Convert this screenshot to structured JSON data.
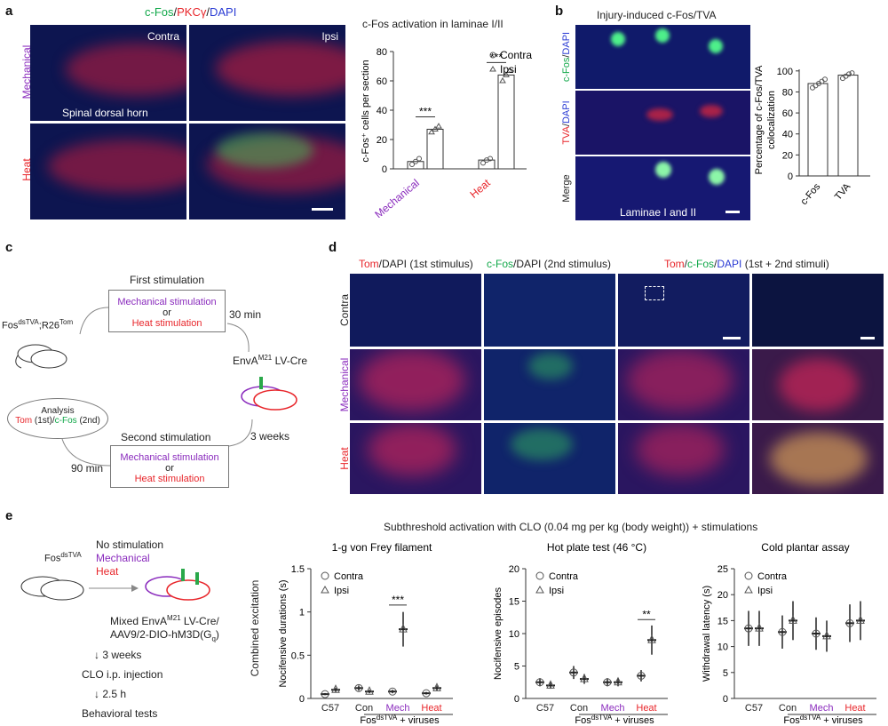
{
  "panel_a": {
    "label": "a",
    "title_parts": [
      {
        "text": "c-Fos",
        "color": "#12a84a"
      },
      {
        "text": "/",
        "color": "#222222"
      },
      {
        "text": "PKCγ",
        "color": "#e8262b"
      },
      {
        "text": "/",
        "color": "#222222"
      },
      {
        "text": "DAPI",
        "color": "#2a3bd4"
      }
    ],
    "col_contra": "Contra",
    "col_ipsi": "Ipsi",
    "row_mechanical": "Mechanical",
    "row_heat": "Heat",
    "region_label": "Spinal dorsal horn",
    "chart_title": "c-Fos activation in laminae I/II",
    "ylabel": "c-Fos⁺ cells per section",
    "legend_contra": "Contra",
    "legend_ipsi": "Ipsi",
    "sig1": "***",
    "sig2": "***",
    "yticks": [
      "0",
      "20",
      "40",
      "60",
      "80"
    ]
  },
  "panel_b": {
    "label": "b",
    "title": "Injury-induced c-Fos/TVA",
    "row1_parts": [
      {
        "text": "c-Fos",
        "color": "#12a84a"
      },
      {
        "text": "/",
        "color": "#222222"
      },
      {
        "text": "DAPI",
        "color": "#2a3bd4"
      }
    ],
    "row2_parts": [
      {
        "text": "TVA",
        "color": "#e8262b"
      },
      {
        "text": "/",
        "color": "#222222"
      },
      {
        "text": "DAPI",
        "color": "#2a3bd4"
      }
    ],
    "row3": "Merge",
    "laminae": "Laminae I and II",
    "ylabel": "Percentage of c-Fos/TVA colocalization",
    "yticks": [
      "0",
      "20",
      "40",
      "60",
      "80",
      "100"
    ]
  },
  "panel_c": {
    "label": "c",
    "first_stim": "First stimulation",
    "mech_stim": "Mechanical stimulation",
    "or": "or",
    "heat_stim": "Heat stimulation",
    "mouse_label_a": "Fos",
    "mouse_label_sup1": "dsTVA",
    "mouse_label_b": ";R26",
    "mouse_label_sup2": "Tom",
    "min30": "30 min",
    "virus": "EnvA",
    "virus_sup": "M21",
    "virus_rest": " LV-Cre",
    "weeks3": "3 weeks",
    "second_stim": "Second stimulation",
    "min90": "90 min",
    "analysis": "Analysis",
    "analysis_tom": "Tom",
    "analysis_tom_rest": " (1st)/",
    "analysis_fos": "c-Fos",
    "analysis_fos_rest": " (2nd)"
  },
  "panel_d": {
    "label": "d",
    "h1_tom": "Tom",
    "h1_rest": "/DAPI (1st stimulus)",
    "h2_fos": "c-Fos",
    "h2_rest": "/DAPI (2nd stimulus)",
    "h3_tom": "Tom",
    "h3_slash": "/",
    "h3_fos": "c-Fos",
    "h3_slash2": "/",
    "h3_dapi": "DAPI",
    "h3_rest": " (1st + 2nd stimuli)",
    "row_contra": "Contra",
    "row_mech": "Mechanical",
    "row_heat": "Heat"
  },
  "panel_e": {
    "label": "e",
    "mouse_label": "Fos",
    "mouse_sup": "dsTVA",
    "no_stim": "No stimulation",
    "mechanical": "Mechanical",
    "heat": "Heat",
    "mix_1a": "Mixed EnvA",
    "mix_1sup": "M21",
    "mix_1b": " LV-Cre/",
    "mix_2a": "AAV9/2-DIO-hM3D(G",
    "mix_2sub": "q",
    "mix_2b": ")",
    "weeks3": "3 weeks",
    "clo": "CLO i.p. injection",
    "h25": "2.5 h",
    "behav": "Behavioral tests",
    "overall_title": "Subthreshold activation with CLO (0.04 mg per kg (body weight)) + stimulations",
    "combined_label": "Combined excitation",
    "group_label": "Fos",
    "group_sup": "dsTVA",
    "group_rest": " + viruses"
  },
  "chart_data": [
    {
      "type": "bar",
      "id": "a",
      "title": "c-Fos activation in laminae I/II",
      "ylabel": "c-Fos⁺ cells per section",
      "categories": [
        "Mechanical",
        "Heat"
      ],
      "ylim": [
        0,
        80
      ],
      "series": [
        {
          "name": "Contra",
          "values": [
            5,
            6
          ]
        },
        {
          "name": "Ipsi",
          "values": [
            27,
            64
          ]
        }
      ],
      "points": {
        "Contra": [
          [
            3,
            5,
            7
          ],
          [
            4,
            6,
            7
          ]
        ],
        "Ipsi": [
          [
            25,
            27,
            29
          ],
          [
            60,
            64,
            67
          ]
        ]
      },
      "significance": [
        "***",
        "***"
      ]
    },
    {
      "type": "bar",
      "id": "b",
      "ylabel": "Percentage of c-Fos/TVA colocalization",
      "categories": [
        "c-Fos",
        "TVA"
      ],
      "ylim": [
        0,
        110
      ],
      "values": [
        88,
        96
      ],
      "points": [
        [
          84,
          86,
          88,
          90,
          92
        ],
        [
          93,
          95,
          97,
          98
        ]
      ]
    },
    {
      "type": "scatter",
      "id": "e1",
      "title": "1-g von Frey filament",
      "ylabel": "Nocifensive durations (s)",
      "categories": [
        "C57",
        "Con",
        "Mech",
        "Heat"
      ],
      "ylim": [
        0,
        1.5
      ],
      "legend": [
        "Contra",
        "Ipsi"
      ],
      "series": [
        {
          "name": "Contra",
          "values": [
            0.05,
            0.12,
            0.08,
            0.06
          ]
        },
        {
          "name": "Ipsi",
          "values": [
            0.1,
            0.08,
            0.8,
            0.12
          ]
        }
      ],
      "significance": {
        "category": "Mech",
        "mark": "***"
      }
    },
    {
      "type": "scatter",
      "id": "e2",
      "title": "Hot plate test (46 °C)",
      "ylabel": "Nocifensive episodes",
      "categories": [
        "C57",
        "Con",
        "Mech",
        "Heat"
      ],
      "ylim": [
        0,
        20
      ],
      "legend": [
        "Contra",
        "Ipsi"
      ],
      "series": [
        {
          "name": "Contra",
          "values": [
            2.5,
            4,
            2.5,
            3.5
          ]
        },
        {
          "name": "Ipsi",
          "values": [
            2,
            3,
            2.5,
            9
          ]
        }
      ],
      "significance": {
        "category": "Heat",
        "mark": "**"
      }
    },
    {
      "type": "scatter",
      "id": "e3",
      "title": "Cold plantar assay",
      "ylabel": "Withdrawal latency (s)",
      "categories": [
        "C57",
        "Con",
        "Mech",
        "Heat"
      ],
      "ylim": [
        0,
        25
      ],
      "legend": [
        "Contra",
        "Ipsi"
      ],
      "series": [
        {
          "name": "Contra",
          "values": [
            13.5,
            12.8,
            12.5,
            14.5
          ]
        },
        {
          "name": "Ipsi",
          "values": [
            13.5,
            15,
            12,
            15
          ]
        }
      ]
    }
  ]
}
